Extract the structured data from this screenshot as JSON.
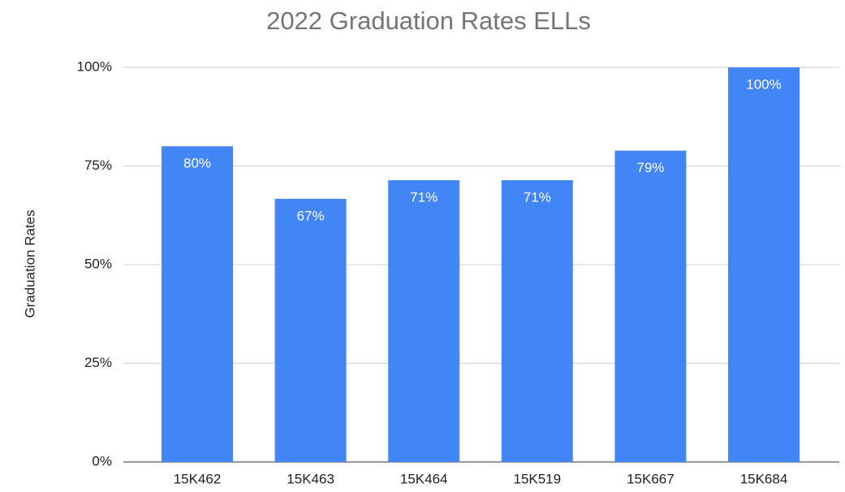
{
  "chart_data": {
    "type": "bar",
    "title": "2022 Graduation Rates ELLs",
    "y_label": "Graduation Rates",
    "categories": [
      "15K462",
      "15K463",
      "15K464",
      "15K519",
      "15K667",
      "15K684"
    ],
    "values": [
      80,
      66.7,
      71.4,
      71.4,
      78.9,
      100
    ],
    "value_labels": [
      "80%",
      "67%",
      "71%",
      "71%",
      "79%",
      "100%"
    ],
    "color": "#4285f4",
    "ylim": [
      0,
      100
    ],
    "yticks": [
      {
        "value": 0,
        "label": "0%"
      },
      {
        "value": 25,
        "label": "25%"
      },
      {
        "value": 50,
        "label": "50%"
      },
      {
        "value": 75,
        "label": "75%"
      },
      {
        "value": 100,
        "label": "100%"
      }
    ],
    "grid": true
  }
}
